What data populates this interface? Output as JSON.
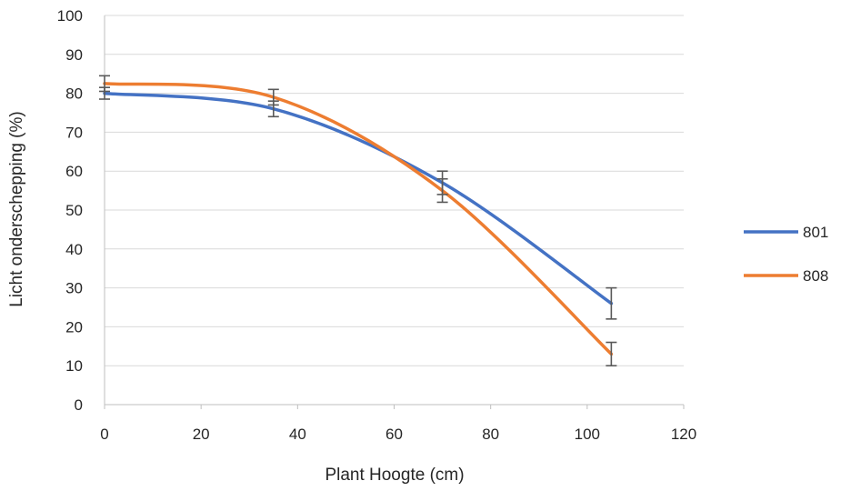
{
  "chart_data": {
    "type": "line",
    "xlabel": "Plant Hoogte (cm)",
    "ylabel": "Licht onderschepping (%)",
    "xlim": [
      0,
      120
    ],
    "ylim": [
      0,
      100
    ],
    "xticks": [
      0,
      20,
      40,
      60,
      80,
      100,
      120
    ],
    "yticks": [
      0,
      10,
      20,
      30,
      40,
      50,
      60,
      70,
      80,
      90,
      100
    ],
    "grid": "horizontal",
    "legend_position": "right",
    "smooth": true,
    "series": [
      {
        "name": "801",
        "color": "#4472C4",
        "x": [
          0,
          35,
          70,
          105
        ],
        "y": [
          80,
          76,
          57,
          26
        ],
        "error": [
          1.5,
          2,
          3,
          4
        ]
      },
      {
        "name": "808",
        "color": "#ED7D31",
        "x": [
          0,
          35,
          70,
          105
        ],
        "y": [
          82.5,
          79,
          55,
          13
        ],
        "error": [
          2,
          2,
          3,
          3
        ]
      }
    ]
  }
}
